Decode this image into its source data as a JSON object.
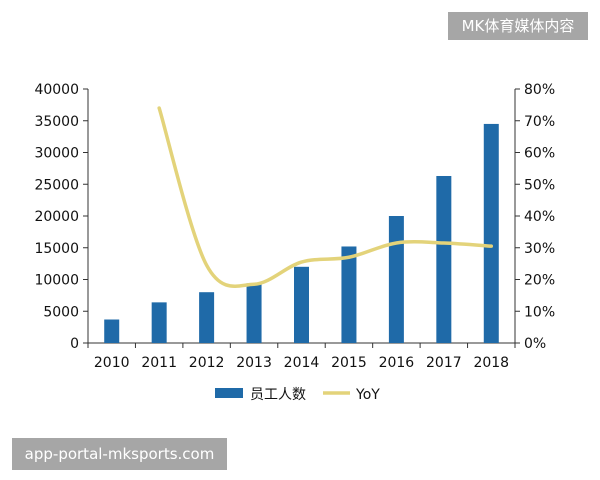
{
  "watermarks": {
    "top": "MK体育媒体内容",
    "bottom": "app-portal-mksports.com"
  },
  "chart_data": {
    "type": "bar+line",
    "categories": [
      "2010",
      "2011",
      "2012",
      "2013",
      "2014",
      "2015",
      "2016",
      "2017",
      "2018"
    ],
    "series": [
      {
        "name": "员工人数",
        "type": "bar",
        "axis": "left",
        "color": "#1f6aa8",
        "values": [
          3700,
          6400,
          8000,
          9400,
          12000,
          15200,
          20000,
          26300,
          34500
        ]
      },
      {
        "name": "YoY",
        "type": "line",
        "axis": "right",
        "color": "#e3d37a",
        "values": [
          null,
          0.74,
          0.245,
          0.185,
          0.255,
          0.27,
          0.315,
          0.315,
          0.305
        ]
      }
    ],
    "y_left": {
      "min": 0,
      "max": 40000,
      "ticks": [
        "0",
        "5000",
        "10000",
        "15000",
        "20000",
        "25000",
        "30000",
        "35000",
        "40000"
      ]
    },
    "y_right": {
      "min": 0,
      "max": 0.8,
      "ticks": [
        "0%",
        "10%",
        "20%",
        "30%",
        "40%",
        "50%",
        "60%",
        "70%",
        "80%"
      ]
    },
    "legend": {
      "position": "bottom"
    }
  }
}
